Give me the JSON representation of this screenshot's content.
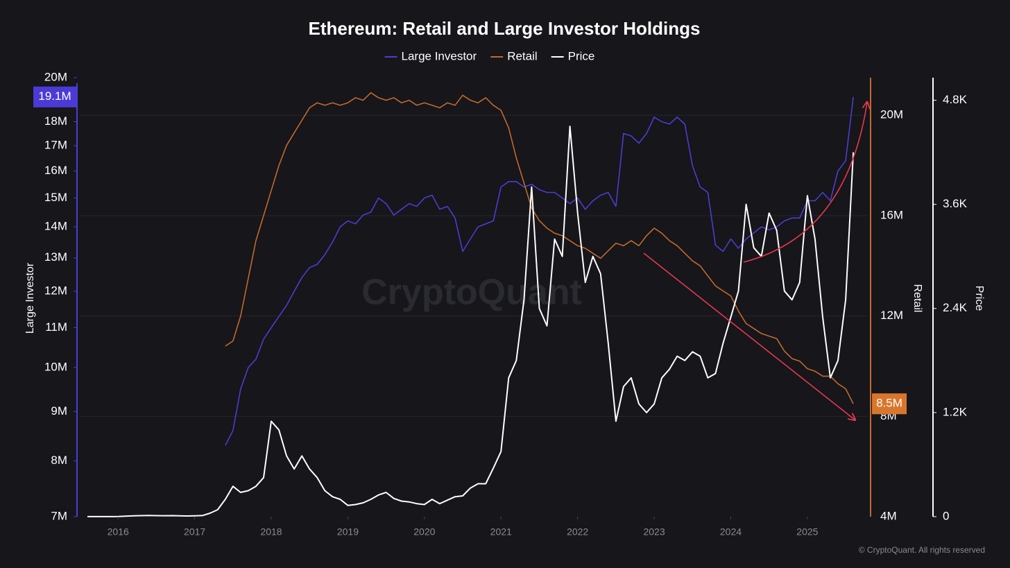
{
  "chart_data": {
    "type": "line",
    "title": "Ethereum: Retail and Large Investor Holdings",
    "watermark": "CryptoQuant",
    "copyright": "© CryptoQuant. All rights reserved",
    "y_label": "Large Investor",
    "y2_label": "Retail",
    "y3_label": "Price",
    "log_scale": "y",
    "grid": true,
    "legend": "top",
    "xlim": [
      2015.5,
      2025.78
    ],
    "xticks": [
      2016,
      2017,
      2018,
      2019,
      2020,
      2021,
      2022,
      2023,
      2024,
      2025
    ],
    "ylim": [
      7000000,
      20000000
    ],
    "yticks": [
      {
        "value": 7000000,
        "label": "7M"
      },
      {
        "value": 8000000,
        "label": "8M"
      },
      {
        "value": 9000000,
        "label": "9M"
      },
      {
        "value": 10000000,
        "label": "10M"
      },
      {
        "value": 11000000,
        "label": "11M"
      },
      {
        "value": 12000000,
        "label": "12M"
      },
      {
        "value": 13000000,
        "label": "13M"
      },
      {
        "value": 14000000,
        "label": "14M"
      },
      {
        "value": 15000000,
        "label": "15M"
      },
      {
        "value": 16000000,
        "label": "16M"
      },
      {
        "value": 17000000,
        "label": "17M"
      },
      {
        "value": 18000000,
        "label": "18M"
      },
      {
        "value": 20000000,
        "label": "20M"
      }
    ],
    "y2lim": [
      4000000,
      21500000
    ],
    "y2ticks": [
      {
        "value": 4000000,
        "label": "4M"
      },
      {
        "value": 8000000,
        "label": "8M"
      },
      {
        "value": 12000000,
        "label": "12M"
      },
      {
        "value": 16000000,
        "label": "16M"
      },
      {
        "value": 20000000,
        "label": "20M"
      }
    ],
    "y3lim": [
      0,
      5060
    ],
    "y3ticks": [
      0,
      {
        "value": 1200,
        "label": "1.2K"
      },
      {
        "value": 2400,
        "label": "2.4K"
      },
      {
        "value": 3600,
        "label": "3.6K"
      },
      {
        "value": 4800,
        "label": "4.8K"
      }
    ],
    "x": [
      2015.6,
      2015.7,
      2015.8,
      2015.9,
      2016.0,
      2016.1,
      2016.2,
      2016.3,
      2016.4,
      2016.5,
      2016.6,
      2016.7,
      2016.8,
      2016.9,
      2017.0,
      2017.1,
      2017.2,
      2017.3,
      2017.4,
      2017.5,
      2017.6,
      2017.7,
      2017.8,
      2017.9,
      2018.0,
      2018.1,
      2018.2,
      2018.3,
      2018.4,
      2018.5,
      2018.6,
      2018.7,
      2018.8,
      2018.9,
      2019.0,
      2019.1,
      2019.2,
      2019.3,
      2019.4,
      2019.5,
      2019.6,
      2019.7,
      2019.8,
      2019.9,
      2020.0,
      2020.1,
      2020.2,
      2020.3,
      2020.4,
      2020.5,
      2020.6,
      2020.7,
      2020.8,
      2020.9,
      2021.0,
      2021.1,
      2021.2,
      2021.3,
      2021.4,
      2021.5,
      2021.6,
      2021.7,
      2021.8,
      2021.9,
      2022.0,
      2022.1,
      2022.2,
      2022.3,
      2022.4,
      2022.5,
      2022.6,
      2022.7,
      2022.8,
      2022.9,
      2023.0,
      2023.1,
      2023.2,
      2023.3,
      2023.4,
      2023.5,
      2023.6,
      2023.7,
      2023.8,
      2023.9,
      2024.0,
      2024.1,
      2024.2,
      2024.3,
      2024.4,
      2024.5,
      2024.6,
      2024.7,
      2024.8,
      2024.9,
      2025.0,
      2025.1,
      2025.2,
      2025.3,
      2025.4,
      2025.5,
      2025.6
    ],
    "series": [
      {
        "name": "Large Investor",
        "color": "#4a3fd0",
        "axis": "y",
        "label_color": "#4b3ad6",
        "values": [
          null,
          null,
          null,
          null,
          null,
          null,
          null,
          null,
          null,
          null,
          null,
          null,
          null,
          null,
          null,
          null,
          null,
          null,
          8300000,
          8600000,
          9500000,
          10000000,
          10200000,
          10700000,
          11000000,
          11300000,
          11600000,
          12000000,
          12400000,
          12700000,
          12800000,
          13100000,
          13500000,
          14000000,
          14200000,
          14100000,
          14400000,
          14500000,
          15000000,
          14800000,
          14400000,
          14600000,
          14800000,
          14700000,
          15000000,
          15100000,
          14600000,
          14700000,
          14300000,
          13200000,
          13600000,
          14000000,
          14100000,
          14200000,
          15400000,
          15600000,
          15600000,
          15400000,
          15500000,
          15300000,
          15200000,
          15200000,
          15000000,
          14800000,
          15000000,
          14600000,
          14900000,
          15100000,
          15200000,
          14700000,
          17500000,
          17400000,
          17100000,
          17500000,
          18200000,
          18000000,
          17900000,
          18200000,
          17900000,
          16200000,
          15400000,
          15200000,
          13400000,
          13200000,
          13600000,
          13300000,
          13600000,
          13800000,
          14000000,
          13900000,
          14000000,
          14200000,
          14300000,
          14300000,
          14900000,
          14900000,
          15200000,
          14900000,
          16000000,
          16400000,
          19100000
        ],
        "value_labels": [
          null,
          null,
          null,
          null,
          null,
          null,
          null,
          null,
          null,
          null,
          null,
          null,
          null,
          null,
          null,
          null,
          null,
          null,
          null,
          null,
          null,
          null,
          null,
          null,
          null,
          null,
          null,
          null,
          null,
          null,
          null,
          null,
          null,
          null,
          null,
          null,
          null,
          null,
          null,
          null,
          null,
          null,
          null,
          null,
          null,
          null,
          null,
          null,
          null,
          null,
          null,
          null,
          null,
          null,
          null,
          null,
          null,
          null,
          null,
          null,
          null,
          null,
          null,
          null,
          null,
          null,
          null,
          null,
          null,
          null,
          null,
          null,
          null,
          null,
          null,
          null,
          null,
          null,
          null,
          null,
          null,
          null,
          null,
          null,
          null,
          null,
          null,
          null,
          null,
          null,
          null,
          null,
          null,
          null,
          null,
          null,
          null,
          null,
          null,
          null,
          "19.1M"
        ]
      },
      {
        "name": "Retail",
        "color": "#c4692b",
        "axis": "y2",
        "label_color": "#d9762d",
        "values": [
          null,
          null,
          null,
          null,
          null,
          null,
          null,
          null,
          null,
          null,
          null,
          null,
          null,
          null,
          null,
          null,
          null,
          null,
          10800000,
          11000000,
          12000000,
          13500000,
          15000000,
          16000000,
          17000000,
          18000000,
          18800000,
          19300000,
          19800000,
          20300000,
          20500000,
          20400000,
          20500000,
          20400000,
          20500000,
          20700000,
          20600000,
          20900000,
          20700000,
          20600000,
          20700000,
          20500000,
          20600000,
          20400000,
          20500000,
          20400000,
          20300000,
          20500000,
          20400000,
          20800000,
          20600000,
          20500000,
          20700000,
          20400000,
          20200000,
          19500000,
          18300000,
          17300000,
          16300000,
          15800000,
          15500000,
          15300000,
          15200000,
          15000000,
          14800000,
          14700000,
          14500000,
          14300000,
          14600000,
          14900000,
          14800000,
          15000000,
          14800000,
          15200000,
          15500000,
          15300000,
          15000000,
          14800000,
          14500000,
          14200000,
          14000000,
          13600000,
          13200000,
          13000000,
          12800000,
          12200000,
          11700000,
          11500000,
          11300000,
          11200000,
          11100000,
          10600000,
          10300000,
          10200000,
          9900000,
          9800000,
          9600000,
          9600000,
          9300000,
          9100000,
          8500000
        ],
        "value_labels": [
          null,
          null,
          null,
          null,
          null,
          null,
          null,
          null,
          null,
          null,
          null,
          null,
          null,
          null,
          null,
          null,
          null,
          null,
          null,
          null,
          null,
          null,
          null,
          null,
          null,
          null,
          null,
          null,
          null,
          null,
          null,
          null,
          null,
          null,
          null,
          null,
          null,
          null,
          null,
          null,
          null,
          null,
          null,
          null,
          null,
          null,
          null,
          null,
          null,
          null,
          null,
          null,
          null,
          null,
          null,
          null,
          null,
          null,
          null,
          null,
          null,
          null,
          null,
          null,
          null,
          null,
          null,
          null,
          null,
          null,
          null,
          null,
          null,
          null,
          null,
          null,
          null,
          null,
          null,
          null,
          null,
          null,
          null,
          null,
          null,
          null,
          null,
          null,
          null,
          null,
          null,
          null,
          null,
          null,
          null,
          null,
          null,
          null,
          null,
          null,
          "8.5M"
        ]
      },
      {
        "name": "Price",
        "color": "#ffffff",
        "axis": "y3",
        "values": [
          1,
          1,
          1,
          1,
          2,
          6,
          10,
          12,
          14,
          12,
          11,
          12,
          10,
          8,
          10,
          13,
          40,
          80,
          200,
          350,
          280,
          300,
          350,
          450,
          1100,
          1000,
          700,
          550,
          700,
          550,
          450,
          300,
          230,
          200,
          130,
          140,
          160,
          200,
          250,
          280,
          210,
          180,
          170,
          150,
          140,
          200,
          150,
          190,
          230,
          240,
          330,
          380,
          380,
          560,
          750,
          1600,
          1800,
          2500,
          3800,
          2400,
          2200,
          3200,
          3000,
          4500,
          3500,
          2700,
          3000,
          2800,
          2000,
          1100,
          1500,
          1600,
          1300,
          1200,
          1300,
          1600,
          1700,
          1850,
          1800,
          1900,
          1850,
          1600,
          1650,
          2000,
          2300,
          2600,
          3600,
          3100,
          3000,
          3500,
          3300,
          2600,
          2500,
          2700,
          3700,
          3200,
          2300,
          1600,
          1800,
          2500,
          4200
        ]
      }
    ]
  }
}
